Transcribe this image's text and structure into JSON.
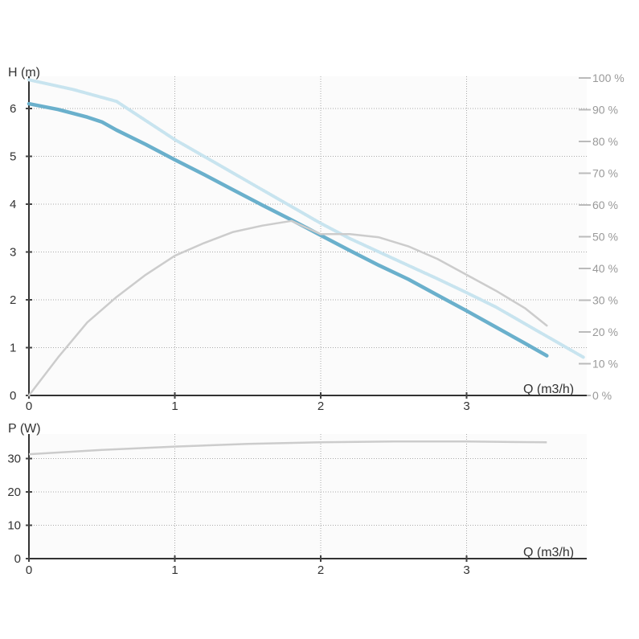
{
  "colors": {
    "head_curve": "#6ab0cc",
    "head_curve_max": "#c8e4ef",
    "efficiency_curve": "#cccccc",
    "power_curve": "#cccccc",
    "plot_background": "#fbfbfb",
    "axis": "#333333",
    "grid": "#aaaaaa",
    "secondary_axis_text": "#999999"
  },
  "chart_data": [
    {
      "type": "line",
      "title": "",
      "xlabel": "Q (m3/h)",
      "ylabel": "H (m)",
      "y2label": "",
      "xlim": [
        0,
        3.8
      ],
      "ylim": [
        0,
        6.6
      ],
      "y2lim": [
        0,
        100
      ],
      "x_ticks": [
        "0",
        "1",
        "2",
        "3"
      ],
      "y_ticks": [
        "0",
        "1",
        "2",
        "3",
        "4",
        "5",
        "6"
      ],
      "y2_ticks": [
        "0 %",
        "10 %",
        "20 %",
        "30 %",
        "40 %",
        "50 %",
        "60 %",
        "70 %",
        "80 %",
        "90 %",
        "100 %"
      ],
      "grid": true,
      "series": [
        {
          "role": "head",
          "axis": "y",
          "style": "solid-thick",
          "x": [
            0,
            0.2,
            0.4,
            0.5,
            0.6,
            0.8,
            1.0,
            1.2,
            1.4,
            1.6,
            1.8,
            2.0,
            2.2,
            2.4,
            2.6,
            2.8,
            3.0,
            3.2,
            3.4,
            3.55
          ],
          "y": [
            6.1,
            5.98,
            5.82,
            5.72,
            5.55,
            5.25,
            4.93,
            4.62,
            4.3,
            3.98,
            3.67,
            3.35,
            3.03,
            2.72,
            2.43,
            2.1,
            1.77,
            1.43,
            1.09,
            0.83
          ]
        },
        {
          "role": "head-max",
          "axis": "y",
          "style": "dotted-light",
          "x": [
            0,
            0.3,
            0.6,
            0.8,
            1.0,
            1.2,
            1.4,
            1.6,
            1.8,
            2.0,
            2.2,
            2.4,
            2.6,
            2.8,
            3.0,
            3.2,
            3.4,
            3.6,
            3.8
          ],
          "y": [
            6.6,
            6.4,
            6.15,
            5.75,
            5.35,
            5.0,
            4.65,
            4.3,
            3.95,
            3.6,
            3.28,
            3.0,
            2.72,
            2.44,
            2.15,
            1.85,
            1.5,
            1.15,
            0.8
          ]
        },
        {
          "role": "efficiency",
          "axis": "y2",
          "style": "solid-thin",
          "x": [
            0,
            0.2,
            0.4,
            0.6,
            0.8,
            1.0,
            1.2,
            1.4,
            1.6,
            1.8,
            2.0,
            2.2,
            2.4,
            2.6,
            2.8,
            3.0,
            3.2,
            3.4,
            3.55
          ],
          "y": [
            0,
            12,
            23,
            31,
            38,
            44,
            48,
            51.5,
            53.5,
            55,
            50.8,
            50.8,
            49.8,
            47,
            43,
            38,
            33,
            27.5,
            22
          ]
        }
      ]
    },
    {
      "type": "line",
      "title": "",
      "xlabel": "Q (m3/h)",
      "ylabel": "P (W)",
      "xlim": [
        0,
        3.8
      ],
      "ylim": [
        0,
        38
      ],
      "x_ticks": [
        "0",
        "1",
        "2",
        "3"
      ],
      "y_ticks": [
        "0",
        "10",
        "20",
        "30"
      ],
      "grid": true,
      "series": [
        {
          "role": "power",
          "axis": "y",
          "style": "solid-thin",
          "x": [
            0,
            0.5,
            1.0,
            1.5,
            2.0,
            2.5,
            3.0,
            3.25,
            3.55
          ],
          "y": [
            31.3,
            32.6,
            33.6,
            34.4,
            34.9,
            35.1,
            35.1,
            35.0,
            34.9
          ]
        }
      ]
    }
  ]
}
